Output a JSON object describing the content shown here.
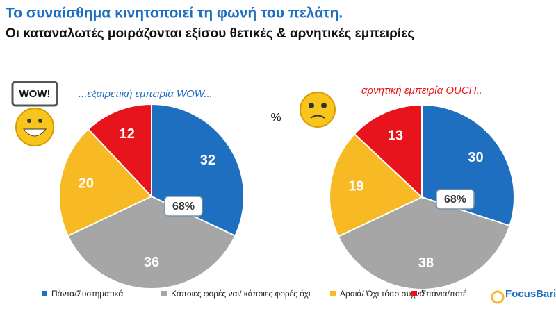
{
  "title": "Το συναίσθημα κινητοποιεί τη φωνή του πελάτη.",
  "subtitle": "Οι καταναλωτές μοιράζονται εξίσου θετικές & αρνητικές εμπειρίες",
  "percent_sign": "%",
  "wow_sign": "WOW!",
  "logo": "FocusBari",
  "legend": {
    "categories": [
      "Πάντα/Συστηματικά",
      "Κάποιες φορές ναι/ κάποιες φορές όχι",
      "Αραιά/ Όχι τόσο συχνά",
      "Σπάνια/ποτέ"
    ],
    "colors": [
      "#1f6fc0",
      "#a6a6a6",
      "#f7b924",
      "#e8141c"
    ]
  },
  "chart_data": [
    {
      "type": "pie",
      "title": "...εξαιρετική εμπειρία WOW...",
      "title_color": "#1f6fc0",
      "values": [
        32,
        36,
        20,
        12
      ],
      "center_label": "68%"
    },
    {
      "type": "pie",
      "title": "αρνητική εμπειρία OUCH..",
      "title_color": "#e8141c",
      "values": [
        30,
        38,
        19,
        13
      ],
      "center_label": "68%"
    }
  ]
}
